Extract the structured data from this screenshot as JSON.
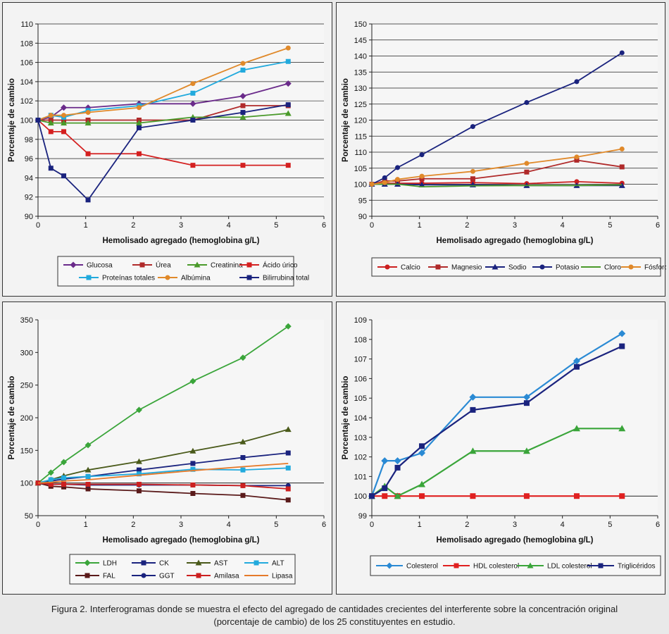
{
  "caption": {
    "line1": "Figura 2. Interferogramas donde se muestra el efecto del agregado de cantidades crecientes del interferente sobre la concentración original",
    "line2": "(porcentaje de cambio) de los 25 constituyentes en estudio."
  },
  "chart_data": [
    {
      "type": "line",
      "xlabel": "Hemolisado agregado (hemoglobina g/L)",
      "ylabel": "Porcentaje de cambio",
      "xlim": [
        0,
        6
      ],
      "xticks": [
        0,
        1,
        2,
        3,
        4,
        5,
        6
      ],
      "ylim": [
        90,
        110
      ],
      "yticks": [
        90,
        92,
        94,
        96,
        98,
        100,
        102,
        104,
        106,
        108,
        110
      ],
      "grid": true,
      "legend_position": "bottom",
      "series": [
        {
          "name": "Glucosa",
          "color": "#6a2a8a",
          "marker": "diamond",
          "x": [
            0,
            0.27,
            0.54,
            1.05,
            2.12,
            3.25,
            4.3,
            5.25
          ],
          "y": [
            100,
            100.3,
            101.3,
            101.3,
            101.7,
            101.7,
            102.5,
            103.8
          ]
        },
        {
          "name": "Úrea",
          "color": "#b02a2a",
          "marker": "square",
          "x": [
            0,
            0.27,
            0.54,
            1.05,
            2.12,
            3.25,
            4.3,
            5.25
          ],
          "y": [
            100,
            100,
            100,
            100,
            100,
            100,
            101.5,
            101.5
          ]
        },
        {
          "name": "Creatinina",
          "color": "#4a9a2a",
          "marker": "triangle",
          "x": [
            0,
            0.27,
            0.54,
            1.05,
            2.12,
            3.25,
            4.3,
            5.25
          ],
          "y": [
            100,
            99.7,
            99.7,
            99.7,
            99.7,
            100.3,
            100.3,
            100.7
          ]
        },
        {
          "name": "Ácido úrico",
          "color": "#d42020",
          "marker": "square",
          "x": [
            0,
            0.27,
            0.54,
            1.05,
            2.12,
            3.25,
            4.3,
            5.25
          ],
          "y": [
            100,
            98.8,
            98.8,
            96.5,
            96.5,
            95.3,
            95.3,
            95.3
          ]
        },
        {
          "name": "Proteínas totales",
          "color": "#22aadd",
          "marker": "square",
          "x": [
            0,
            0.27,
            0.54,
            1.05,
            2.12,
            3.25,
            4.3,
            5.25
          ],
          "y": [
            100,
            100.5,
            100.3,
            101,
            101.5,
            102.8,
            105.2,
            106.1
          ]
        },
        {
          "name": "Albúmina",
          "color": "#e0892a",
          "marker": "circle",
          "x": [
            0,
            0.27,
            0.54,
            1.05,
            2.12,
            3.25,
            4.3,
            5.25
          ],
          "y": [
            100,
            100.5,
            100.5,
            100.8,
            101.3,
            103.8,
            105.9,
            107.5
          ]
        },
        {
          "name": "Bilirrubina total",
          "color": "#1a237e",
          "marker": "square",
          "x": [
            0,
            0.27,
            0.54,
            1.05,
            2.12,
            3.25,
            4.3,
            5.25
          ],
          "y": [
            100,
            95,
            94.2,
            91.7,
            99.2,
            100,
            100.8,
            101.6
          ]
        }
      ]
    },
    {
      "type": "line",
      "xlabel": "Hemolisado agregado (hemoglobina g/L)",
      "ylabel": "Porcentaje de cambio",
      "xlim": [
        0,
        6
      ],
      "xticks": [
        0,
        1,
        2,
        3,
        4,
        5,
        6
      ],
      "ylim": [
        90,
        150
      ],
      "yticks": [
        90,
        95,
        100,
        105,
        110,
        115,
        120,
        125,
        130,
        135,
        140,
        145,
        150
      ],
      "grid": true,
      "legend_position": "bottom",
      "series": [
        {
          "name": "Calcio",
          "color": "#cc2020",
          "marker": "circle",
          "x": [
            0,
            0.27,
            0.54,
            1.05,
            2.12,
            3.25,
            4.3,
            5.25
          ],
          "y": [
            100,
            100.3,
            100.3,
            100.3,
            100.5,
            100.2,
            100.8,
            100.3
          ]
        },
        {
          "name": "Magnesio",
          "color": "#b02a2a",
          "marker": "square",
          "x": [
            0,
            0.27,
            0.54,
            1.05,
            2.12,
            3.25,
            4.3,
            5.25
          ],
          "y": [
            100,
            101,
            101,
            101.7,
            101.7,
            103.8,
            107.5,
            105.4
          ]
        },
        {
          "name": "Sodio",
          "color": "#1a237e",
          "marker": "triangle",
          "x": [
            0,
            0.27,
            0.54,
            1.05,
            2.12,
            3.25,
            4.3,
            5.25
          ],
          "y": [
            100,
            100,
            100,
            99.8,
            99.8,
            99.6,
            99.6,
            99.6
          ]
        },
        {
          "name": "Potasio",
          "color": "#1a237e",
          "marker": "circle",
          "x": [
            0,
            0.27,
            0.54,
            1.05,
            2.12,
            3.25,
            4.3,
            5.25
          ],
          "y": [
            100,
            102,
            105.2,
            109.2,
            118,
            125.5,
            132,
            141
          ]
        },
        {
          "name": "Cloro",
          "color": "#4a9a2a",
          "marker": "none",
          "x": [
            0,
            0.27,
            0.54,
            1.05,
            2.12,
            3.25,
            4.3,
            5.25
          ],
          "y": [
            100,
            100,
            100,
            99.2,
            99.5,
            99.6,
            99.6,
            99.8
          ]
        },
        {
          "name": "Fósforo",
          "color": "#e0892a",
          "marker": "circle",
          "x": [
            0,
            0.27,
            0.54,
            1.05,
            2.12,
            3.25,
            4.3,
            5.25
          ],
          "y": [
            100,
            100.5,
            101.5,
            102.5,
            104,
            106.5,
            108.5,
            111
          ]
        }
      ]
    },
    {
      "type": "line",
      "xlabel": "Hemolisado agregado (hemoglobina g/L)",
      "ylabel": "Porcentaje de cambio",
      "xlim": [
        0,
        6
      ],
      "xticks": [
        0,
        1,
        2,
        3,
        4,
        5,
        6
      ],
      "ylim": [
        50,
        350
      ],
      "yticks": [
        50,
        100,
        150,
        200,
        250,
        300,
        350
      ],
      "grid": false,
      "legend_position": "bottom",
      "series": [
        {
          "name": "LDH",
          "color": "#3aa53a",
          "marker": "diamond",
          "x": [
            0,
            0.27,
            0.54,
            1.05,
            2.12,
            3.25,
            4.3,
            5.25
          ],
          "y": [
            100,
            116,
            132,
            158,
            212,
            256,
            292,
            340
          ]
        },
        {
          "name": "CK",
          "color": "#1a237e",
          "marker": "square",
          "x": [
            0,
            0.27,
            0.54,
            1.05,
            2.12,
            3.25,
            4.3,
            5.25
          ],
          "y": [
            100,
            103,
            106,
            110,
            120,
            130,
            139,
            146
          ]
        },
        {
          "name": "AST",
          "color": "#4a5a1a",
          "marker": "triangle",
          "x": [
            0,
            0.27,
            0.54,
            1.05,
            2.12,
            3.25,
            4.3,
            5.25
          ],
          "y": [
            100,
            105,
            111,
            120,
            133,
            149,
            163,
            182
          ]
        },
        {
          "name": "ALT",
          "color": "#22aadd",
          "marker": "square",
          "x": [
            0,
            0.27,
            0.54,
            1.05,
            2.12,
            3.25,
            4.3,
            5.25
          ],
          "y": [
            100,
            105,
            108,
            110,
            114,
            121,
            120,
            123
          ]
        },
        {
          "name": "FAL",
          "color": "#5a1a1a",
          "marker": "square",
          "x": [
            0,
            0.27,
            0.54,
            1.05,
            2.12,
            3.25,
            4.3,
            5.25
          ],
          "y": [
            100,
            95,
            94,
            91,
            88,
            84,
            81,
            74
          ]
        },
        {
          "name": "GGT",
          "color": "#1a237e",
          "marker": "circle",
          "x": [
            0,
            0.27,
            0.54,
            1.05,
            2.12,
            3.25,
            4.3,
            5.25
          ],
          "y": [
            100,
            98,
            98,
            97,
            97,
            97,
            96,
            96
          ]
        },
        {
          "name": "Amilasa",
          "color": "#cc2020",
          "marker": "square",
          "x": [
            0,
            0.27,
            0.54,
            1.05,
            2.12,
            3.25,
            4.3,
            5.25
          ],
          "y": [
            100,
            98,
            98,
            98,
            98,
            97,
            96,
            91
          ]
        },
        {
          "name": "Lipasa",
          "color": "#e57a2a",
          "marker": "none",
          "x": [
            0,
            0.27,
            0.54,
            1.05,
            2.12,
            3.25,
            4.3,
            5.25
          ],
          "y": [
            100,
            101,
            103,
            105,
            112,
            119,
            125,
            130
          ]
        }
      ]
    },
    {
      "type": "line",
      "xlabel": "Hemolisado agregado (hemoglobina g/L)",
      "ylabel": "Porcentaje de cambio",
      "xlim": [
        0,
        6
      ],
      "xticks": [
        0,
        1,
        2,
        3,
        4,
        5,
        6
      ],
      "ylim": [
        99,
        109
      ],
      "yticks": [
        99,
        100,
        101,
        102,
        103,
        104,
        105,
        106,
        107,
        108,
        109
      ],
      "grid": false,
      "legend_position": "bottom",
      "series": [
        {
          "name": "Colesterol",
          "color": "#2a8ad4",
          "marker": "diamond",
          "x": [
            0,
            0.27,
            0.54,
            1.05,
            2.12,
            3.25,
            4.3,
            5.25
          ],
          "y": [
            100,
            101.8,
            101.8,
            102.2,
            105.05,
            105.05,
            106.9,
            108.3
          ]
        },
        {
          "name": "HDL colesterol",
          "color": "#e02020",
          "marker": "square",
          "x": [
            0,
            0.27,
            0.54,
            1.05,
            2.12,
            3.25,
            4.3,
            5.25
          ],
          "y": [
            100,
            100,
            100,
            100,
            100,
            100,
            100,
            100
          ]
        },
        {
          "name": "LDL colesterol",
          "color": "#3aa53a",
          "marker": "triangle",
          "x": [
            0,
            0.27,
            0.54,
            1.05,
            2.12,
            3.25,
            4.3,
            5.25
          ],
          "y": [
            100,
            100.5,
            100,
            100.6,
            102.3,
            102.3,
            103.45,
            103.45
          ]
        },
        {
          "name": "Triglicéridos",
          "color": "#1a237e",
          "marker": "square",
          "x": [
            0,
            0.27,
            0.54,
            1.05,
            2.12,
            3.25,
            4.3,
            5.25
          ],
          "y": [
            100,
            100.4,
            101.45,
            102.55,
            104.4,
            104.75,
            106.6,
            107.65
          ]
        }
      ]
    }
  ]
}
